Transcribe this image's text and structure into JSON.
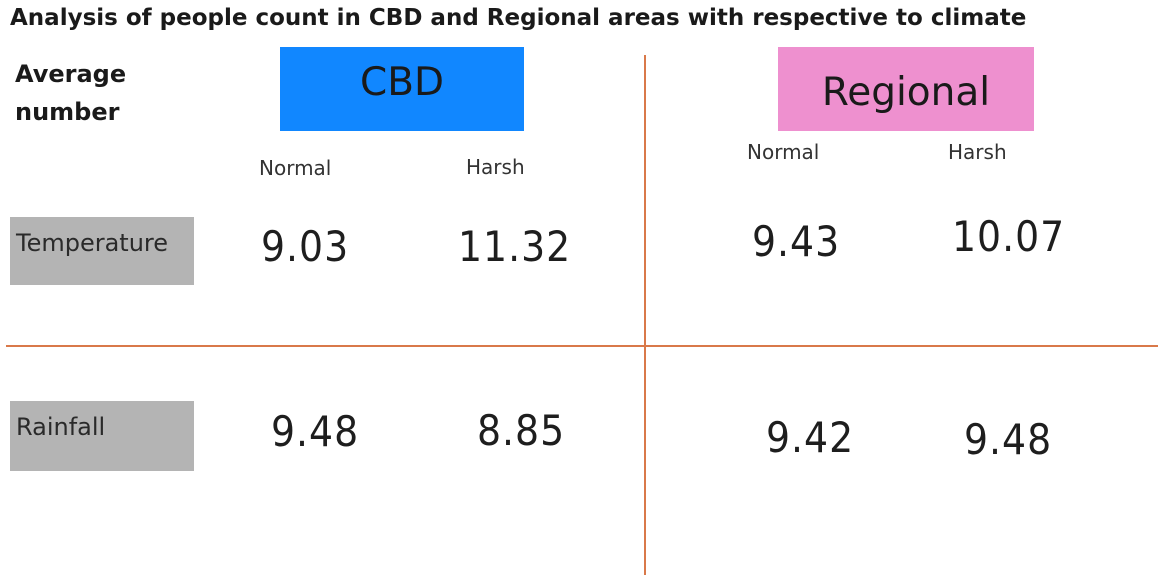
{
  "title": "Analysis of people count in CBD and Regional areas with respective to climate",
  "corner_label_line1": "Average",
  "corner_label_line2": "number",
  "groups": {
    "cbd": {
      "label": "CBD",
      "color": "#1187ff"
    },
    "regional": {
      "label": "Regional",
      "color": "#ee90cf"
    }
  },
  "subheaders": {
    "cbd_normal": "Normal",
    "cbd_harsh": "Harsh",
    "regional_normal": "Normal",
    "regional_harsh": "Harsh"
  },
  "rows": {
    "temperature": {
      "label": "Temperature",
      "cbd_normal": "9.03",
      "cbd_harsh": "11.32",
      "regional_normal": "9.43",
      "regional_harsh": "10.07"
    },
    "rainfall": {
      "label": "Rainfall",
      "cbd_normal": "9.48",
      "cbd_harsh": "8.85",
      "regional_normal": "9.42",
      "regional_harsh": "9.48"
    }
  },
  "divider_color": "#d9794a",
  "row_label_color": "#b4b4b4"
}
